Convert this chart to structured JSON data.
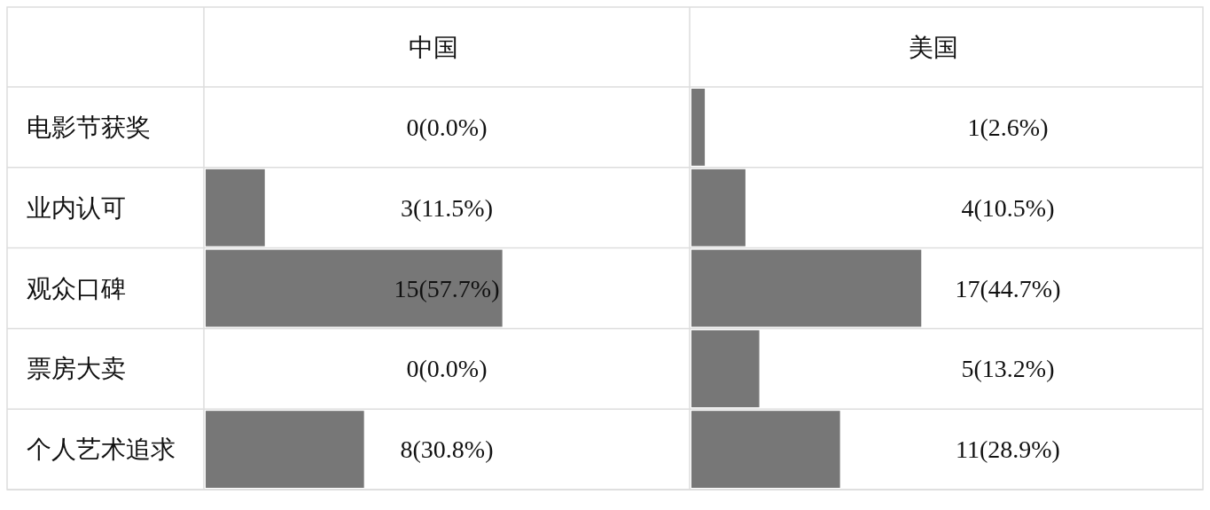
{
  "chart_data": [
    {
      "type": "bar",
      "orientation": "horizontal",
      "title": "中国",
      "categories": [
        "电影节获奖",
        "业内认可",
        "观众口碑",
        "票房大卖",
        "个人艺术追求"
      ],
      "values": [
        0.0,
        11.5,
        57.7,
        0.0,
        30.8
      ],
      "value_labels": [
        "0(0.0%)",
        "3(11.5%)",
        "15(57.7%)",
        "0(0.0%)",
        "8(30.8%)"
      ],
      "color": "#777777"
    },
    {
      "type": "bar",
      "orientation": "horizontal",
      "title": "美国",
      "values": [
        2.6,
        10.5,
        44.7,
        13.2,
        28.9
      ],
      "value_labels": [
        "1(2.6%)",
        "4(10.5%)",
        "17(44.7%)",
        "5(13.2%)",
        "11(28.9%)"
      ],
      "color": "#777777"
    }
  ]
}
